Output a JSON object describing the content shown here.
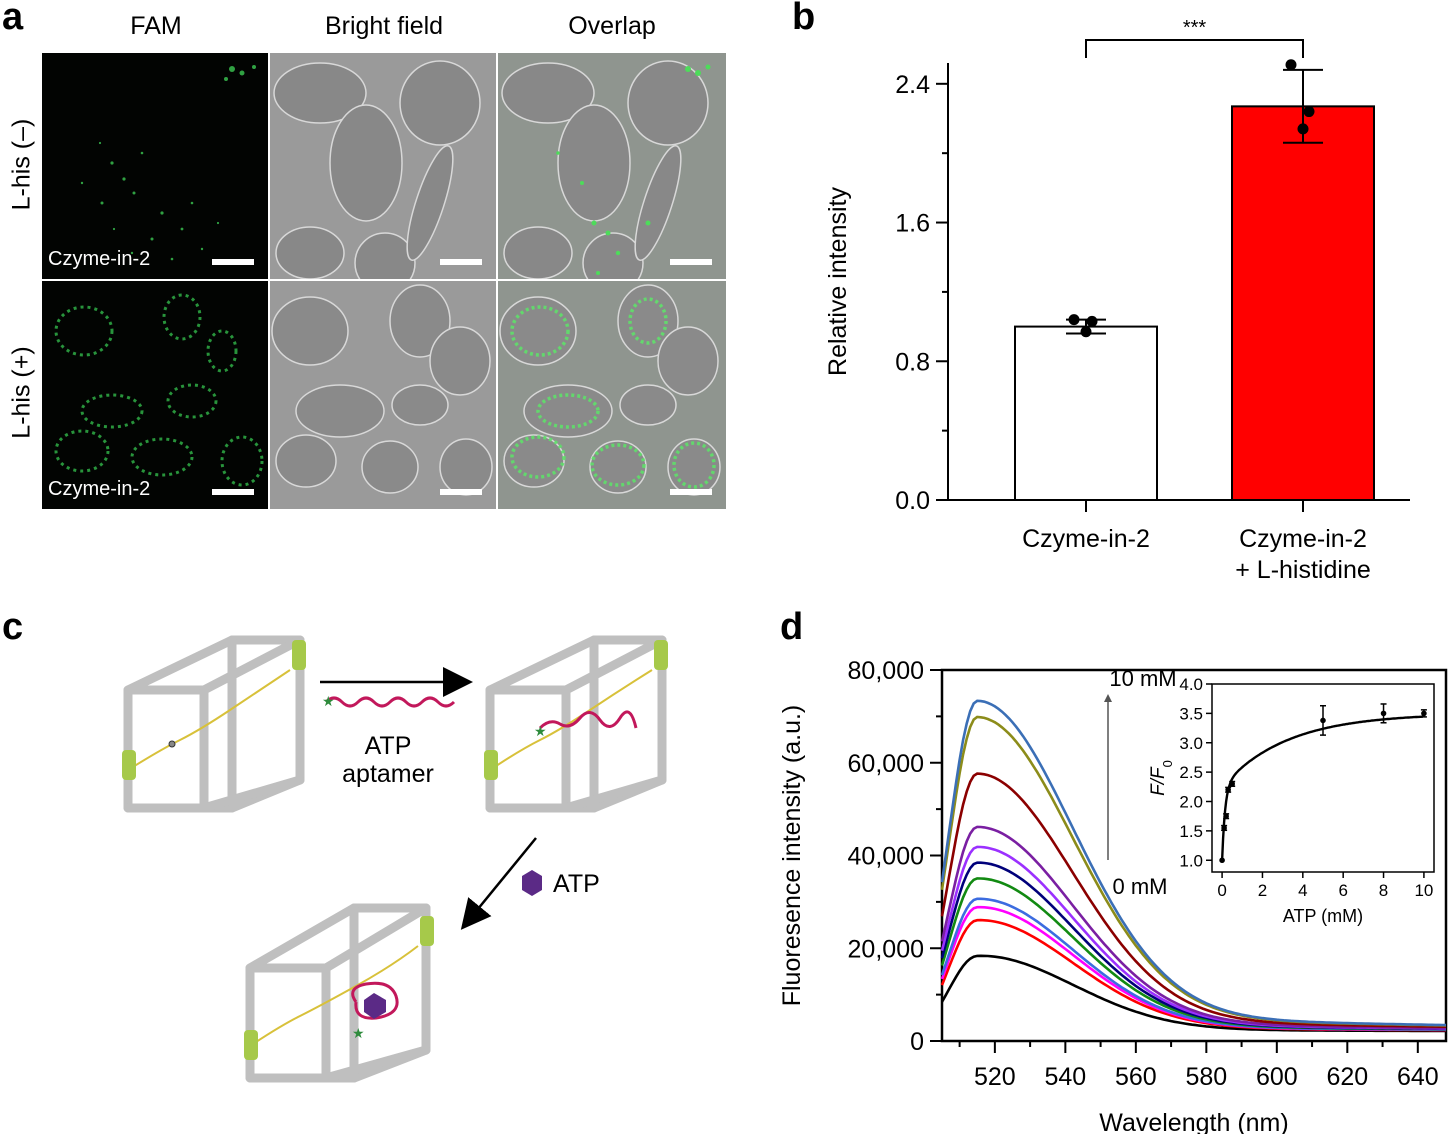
{
  "panels": {
    "a": {
      "letter": "a",
      "columns": [
        "FAM",
        "Bright field",
        "Overlap"
      ],
      "rows": [
        "L-his (–)",
        "L-his (+)"
      ],
      "cell_label": "Czyme-in-2"
    },
    "b": {
      "letter": "b"
    },
    "c": {
      "letter": "c",
      "aptamer_label_1": "ATP",
      "aptamer_label_2": "aptamer",
      "atp_label": "ATP",
      "colors": {
        "frame": "#bfbfbf",
        "helix": "#c8d43a",
        "aptamer": "#c2185b",
        "atp": "#5b2a86",
        "fluor": "#2e8b3c"
      }
    },
    "d": {
      "letter": "d",
      "arrow_top": "10 mM",
      "arrow_bottom": "0 mM"
    }
  },
  "chart_data": [
    {
      "id": "b",
      "type": "bar",
      "categories": [
        "Czyme-in-2",
        "Czyme-in-2 + L-histidine"
      ],
      "category_lines": [
        [
          "Czyme-in-2"
        ],
        [
          "Czyme-in-2",
          "+ L-histidine"
        ]
      ],
      "values": [
        1.0,
        2.27
      ],
      "errors": [
        0.04,
        0.21
      ],
      "points": [
        [
          1.04,
          1.03,
          0.97
        ],
        [
          2.51,
          2.24,
          2.14
        ]
      ],
      "colors": [
        "#ffffff",
        "#ff0000"
      ],
      "ylabel": "Relative intensity",
      "ylim": [
        0,
        2.4
      ],
      "yticks": [
        "0.0",
        "0.8",
        "1.6",
        "2.4"
      ],
      "significance": "***"
    },
    {
      "id": "d",
      "type": "line",
      "xlabel": "Wavelength (nm)",
      "ylabel": "Fluoresence intensity (a.u.)",
      "xlim": [
        505,
        648
      ],
      "ylim": [
        0,
        80000
      ],
      "xticks": [
        "520",
        "540",
        "560",
        "580",
        "600",
        "620",
        "640"
      ],
      "yticks": [
        "0",
        "20,000",
        "40,000",
        "60,000",
        "80,000"
      ],
      "series": [
        {
          "color": "#000000",
          "peak": 18500
        },
        {
          "color": "#ff0000",
          "peak": 26200
        },
        {
          "color": "#ff00ff",
          "peak": 29000
        },
        {
          "color": "#3c6ce0",
          "peak": 30800
        },
        {
          "color": "#128a12",
          "peak": 35200
        },
        {
          "color": "#00007a",
          "peak": 38600
        },
        {
          "color": "#9b30ff",
          "peak": 42000
        },
        {
          "color": "#7a1fa2",
          "peak": 46300
        },
        {
          "color": "#8b0000",
          "peak": 57800
        },
        {
          "color": "#8c8c1a",
          "peak": 70000
        },
        {
          "color": "#3b6fb6",
          "peak": 73500
        }
      ],
      "inset": {
        "type": "line",
        "xlabel": "ATP (mM)",
        "ylabel": "F/F0",
        "xlim": [
          -0.5,
          10.5
        ],
        "ylim": [
          0.8,
          4.0
        ],
        "xticks": [
          "0",
          "2",
          "4",
          "6",
          "8",
          "10"
        ],
        "yticks": [
          "1.0",
          "1.5",
          "2.0",
          "2.5",
          "3.0",
          "3.5",
          "4.0"
        ],
        "x": [
          0,
          0.1,
          0.2,
          0.3,
          0.5,
          5,
          8,
          10
        ],
        "y": [
          1.0,
          1.55,
          1.75,
          2.2,
          2.3,
          3.38,
          3.5,
          3.5
        ],
        "err": [
          0,
          0.04,
          0.04,
          0.04,
          0.04,
          0.25,
          0.16,
          0.06
        ]
      }
    }
  ]
}
